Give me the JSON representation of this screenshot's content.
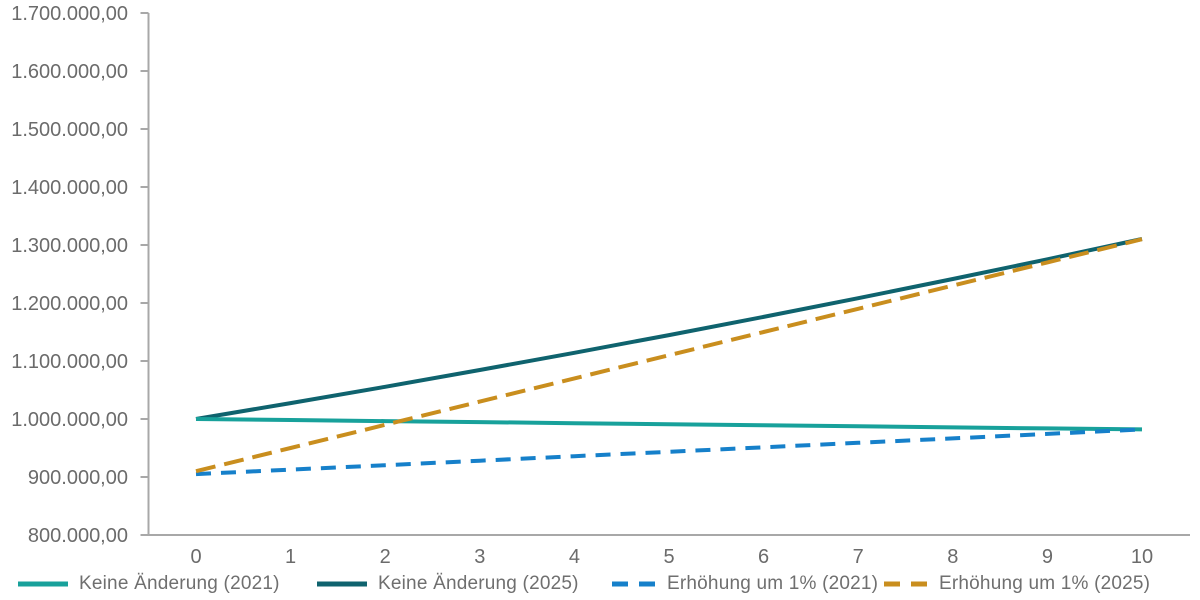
{
  "chart_data": {
    "type": "line",
    "title": "",
    "xlabel": "",
    "ylabel": "",
    "grid": false,
    "legend_position": "bottom",
    "xlim": [
      0,
      10
    ],
    "ylim": [
      800000,
      1700000
    ],
    "x": [
      0,
      1,
      2,
      3,
      4,
      5,
      6,
      7,
      8,
      9,
      10
    ],
    "x_ticks": [
      {
        "label": "0",
        "value": 0
      },
      {
        "label": "1",
        "value": 1
      },
      {
        "label": "2",
        "value": 2
      },
      {
        "label": "3",
        "value": 3
      },
      {
        "label": "4",
        "value": 4
      },
      {
        "label": "5",
        "value": 5
      },
      {
        "label": "6",
        "value": 6
      },
      {
        "label": "7",
        "value": 7
      },
      {
        "label": "8",
        "value": 8
      },
      {
        "label": "9",
        "value": 9
      },
      {
        "label": "10",
        "value": 10
      }
    ],
    "y_ticks": [
      {
        "label": "800.000,00",
        "value": 800000
      },
      {
        "label": "900.000,00",
        "value": 900000
      },
      {
        "label": "1.000.000,00",
        "value": 1000000
      },
      {
        "label": "1.100.000,00",
        "value": 1100000
      },
      {
        "label": "1.200.000,00",
        "value": 1200000
      },
      {
        "label": "1.300.000,00",
        "value": 1300000
      },
      {
        "label": "1.400.000,00",
        "value": 1400000
      },
      {
        "label": "1.500.000,00",
        "value": 1500000
      },
      {
        "label": "1.600.000,00",
        "value": 1600000
      },
      {
        "label": "1.700.000,00",
        "value": 1700000
      }
    ],
    "series": [
      {
        "name": "Keine Änderung (2021)",
        "color": "#18A19B",
        "style": "solid",
        "values": [
          1000000,
          998200,
          996400,
          994600,
          992800,
          991000,
          989200,
          987400,
          985600,
          983800,
          982000
        ]
      },
      {
        "name": "Keine Änderung (2025)",
        "color": "#0F636E",
        "style": "solid",
        "values": [
          1000000,
          1027400,
          1055550,
          1084470,
          1114180,
          1144710,
          1176080,
          1208310,
          1241420,
          1275430,
          1310370
        ]
      },
      {
        "name": "Erhöhung um 1% (2021)",
        "color": "#1680CA",
        "style": "dashed",
        "values": [
          905000,
          912700,
          920400,
          928100,
          935800,
          943500,
          951200,
          958900,
          966600,
          974300,
          982000
        ]
      },
      {
        "name": "Erhöhung um 1% (2025)",
        "color": "#C98E1E",
        "style": "dashed",
        "values": [
          910000,
          950000,
          990000,
          1030000,
          1070000,
          1110000,
          1150000,
          1190000,
          1230000,
          1270000,
          1310000
        ]
      }
    ],
    "colors": {
      "axis_line": "#A8A8A8",
      "tick_label": "#6B6B6B",
      "legend_text": "#6F6F6F",
      "background": "#FFFFFF"
    }
  }
}
